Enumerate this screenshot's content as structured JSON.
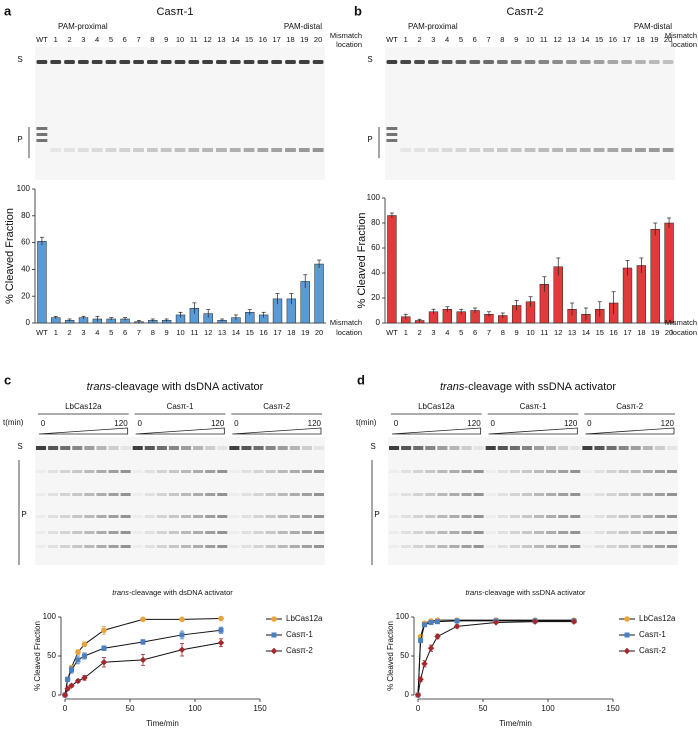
{
  "panels": [
    {
      "label": "a",
      "title": "Casπ-1",
      "header_left": "PAM-proximal",
      "header_right": "PAM-distal",
      "lanes": [
        "WT",
        "1",
        "2",
        "3",
        "4",
        "5",
        "6",
        "7",
        "8",
        "9",
        "10",
        "11",
        "12",
        "13",
        "14",
        "15",
        "16",
        "17",
        "18",
        "19",
        "20"
      ],
      "lane_axis_label": [
        "Mismatch",
        "location"
      ],
      "band_labels": [
        "S",
        "P"
      ]
    },
    {
      "label": "b",
      "title": "Casπ-2",
      "header_left": "PAM-proximal",
      "header_right": "PAM-distal",
      "lanes": [
        "WT",
        "1",
        "2",
        "3",
        "4",
        "5",
        "6",
        "7",
        "8",
        "9",
        "10",
        "11",
        "12",
        "13",
        "14",
        "15",
        "16",
        "17",
        "18",
        "19",
        "20"
      ],
      "lane_axis_label": [
        "Mismatch",
        "location"
      ],
      "band_labels": [
        "S",
        "P"
      ]
    },
    {
      "label": "c",
      "title": "trans-cleavage with dsDNA activator",
      "groups": [
        "LbCas12a",
        "Casπ-1",
        "Casπ-2"
      ],
      "time_label": "t(min)",
      "time_start": "0",
      "time_end": "120",
      "band_labels": [
        "S",
        "P"
      ]
    },
    {
      "label": "d",
      "title": "trans-cleavage with ssDNA activator",
      "groups": [
        "LbCas12a",
        "Casπ-1",
        "Casπ-2"
      ],
      "time_label": "t(min)",
      "time_start": "0",
      "time_end": "120",
      "band_labels": [
        "S",
        "P"
      ]
    }
  ],
  "chart_data": [
    {
      "type": "bar",
      "ylabel": "% Cleaved Fraction",
      "xlabel": [
        "Mismatch",
        "location"
      ],
      "categories": [
        "WT",
        "1",
        "2",
        "3",
        "4",
        "5",
        "6",
        "7",
        "8",
        "9",
        "10",
        "11",
        "12",
        "13",
        "14",
        "15",
        "16",
        "17",
        "18",
        "19",
        "20"
      ],
      "values": [
        61,
        4,
        2,
        4,
        3,
        3,
        3,
        1,
        2,
        2,
        6,
        11,
        7,
        2,
        4,
        8,
        6,
        18,
        18,
        31,
        44
      ],
      "errors": [
        3,
        1,
        1,
        1,
        2,
        1,
        1,
        1,
        1,
        1,
        2,
        4,
        3,
        1,
        2,
        2,
        2,
        4,
        4,
        5,
        3
      ],
      "color": "#5b9bd5",
      "ylim": [
        0,
        100
      ],
      "yticks": [
        0,
        20,
        40,
        60,
        80,
        100
      ]
    },
    {
      "type": "bar",
      "ylabel": "% Cleaved Fraction",
      "xlabel": [
        "Mismatch",
        "location"
      ],
      "categories": [
        "WT",
        "1",
        "2",
        "3",
        "4",
        "5",
        "6",
        "7",
        "8",
        "9",
        "10",
        "11",
        "12",
        "13",
        "14",
        "15",
        "16",
        "17",
        "18",
        "19",
        "20"
      ],
      "values": [
        86,
        5,
        2,
        9,
        11,
        9,
        10,
        7,
        6,
        14,
        17,
        31,
        45,
        11,
        7,
        11,
        16,
        44,
        46,
        75,
        80
      ],
      "errors": [
        2,
        2,
        1,
        2,
        2,
        2,
        2,
        2,
        2,
        4,
        4,
        6,
        7,
        5,
        5,
        6,
        9,
        6,
        6,
        5,
        4
      ],
      "color": "#e03a3a",
      "ylim": [
        0,
        100
      ],
      "yticks": [
        0,
        20,
        40,
        60,
        80,
        100
      ]
    },
    {
      "type": "line",
      "title": "trans-cleavage with dsDNA activator",
      "xlabel": "Time/min",
      "ylabel": "% Cleaved Fraction",
      "x": [
        0,
        2,
        5,
        10,
        15,
        30,
        60,
        90,
        120
      ],
      "series": [
        {
          "name": "LbCas12a",
          "color": "#e8a33c",
          "marker": "circle",
          "values": [
            0,
            20,
            35,
            55,
            65,
            83,
            97,
            97,
            98
          ],
          "errors": [
            0,
            2,
            3,
            3,
            3,
            5,
            1,
            1,
            1
          ]
        },
        {
          "name": "Casπ-1",
          "color": "#4a7fc1",
          "marker": "square",
          "values": [
            0,
            20,
            32,
            45,
            50,
            60,
            68,
            77,
            83
          ],
          "errors": [
            0,
            3,
            4,
            5,
            4,
            3,
            3,
            5,
            4
          ]
        },
        {
          "name": "Casπ-2",
          "color": "#a3282e",
          "marker": "diamond",
          "values": [
            0,
            8,
            12,
            18,
            22,
            42,
            45,
            58,
            67
          ],
          "errors": [
            0,
            2,
            2,
            2,
            3,
            6,
            7,
            8,
            5
          ]
        }
      ],
      "xlim": [
        0,
        150
      ],
      "xticks": [
        0,
        50,
        100,
        150
      ],
      "ylim": [
        0,
        100
      ],
      "yticks": [
        0,
        50,
        100
      ]
    },
    {
      "type": "line",
      "title": "trans-cleavage with ssDNA activator",
      "xlabel": "Time/min",
      "ylabel": "% Cleaved Fraction",
      "x": [
        0,
        2,
        5,
        10,
        15,
        30,
        60,
        90,
        120
      ],
      "series": [
        {
          "name": "LbCas12a",
          "color": "#e8a33c",
          "marker": "circle",
          "values": [
            0,
            75,
            92,
            95,
            96,
            96,
            96,
            96,
            96
          ],
          "errors": [
            0,
            2,
            1,
            1,
            1,
            1,
            1,
            1,
            1
          ]
        },
        {
          "name": "Casπ-1",
          "color": "#4a7fc1",
          "marker": "square",
          "values": [
            0,
            70,
            90,
            93,
            94,
            95,
            95,
            95,
            95
          ],
          "errors": [
            0,
            3,
            2,
            1,
            1,
            1,
            1,
            1,
            1
          ]
        },
        {
          "name": "Casπ-2",
          "color": "#a3282e",
          "marker": "diamond",
          "values": [
            0,
            20,
            40,
            60,
            75,
            88,
            93,
            94,
            94
          ],
          "errors": [
            0,
            3,
            4,
            4,
            3,
            2,
            1,
            1,
            1
          ]
        }
      ],
      "xlim": [
        0,
        150
      ],
      "xticks": [
        0,
        50,
        100,
        150
      ],
      "ylim": [
        0,
        100
      ],
      "yticks": [
        0,
        50,
        100
      ]
    }
  ]
}
